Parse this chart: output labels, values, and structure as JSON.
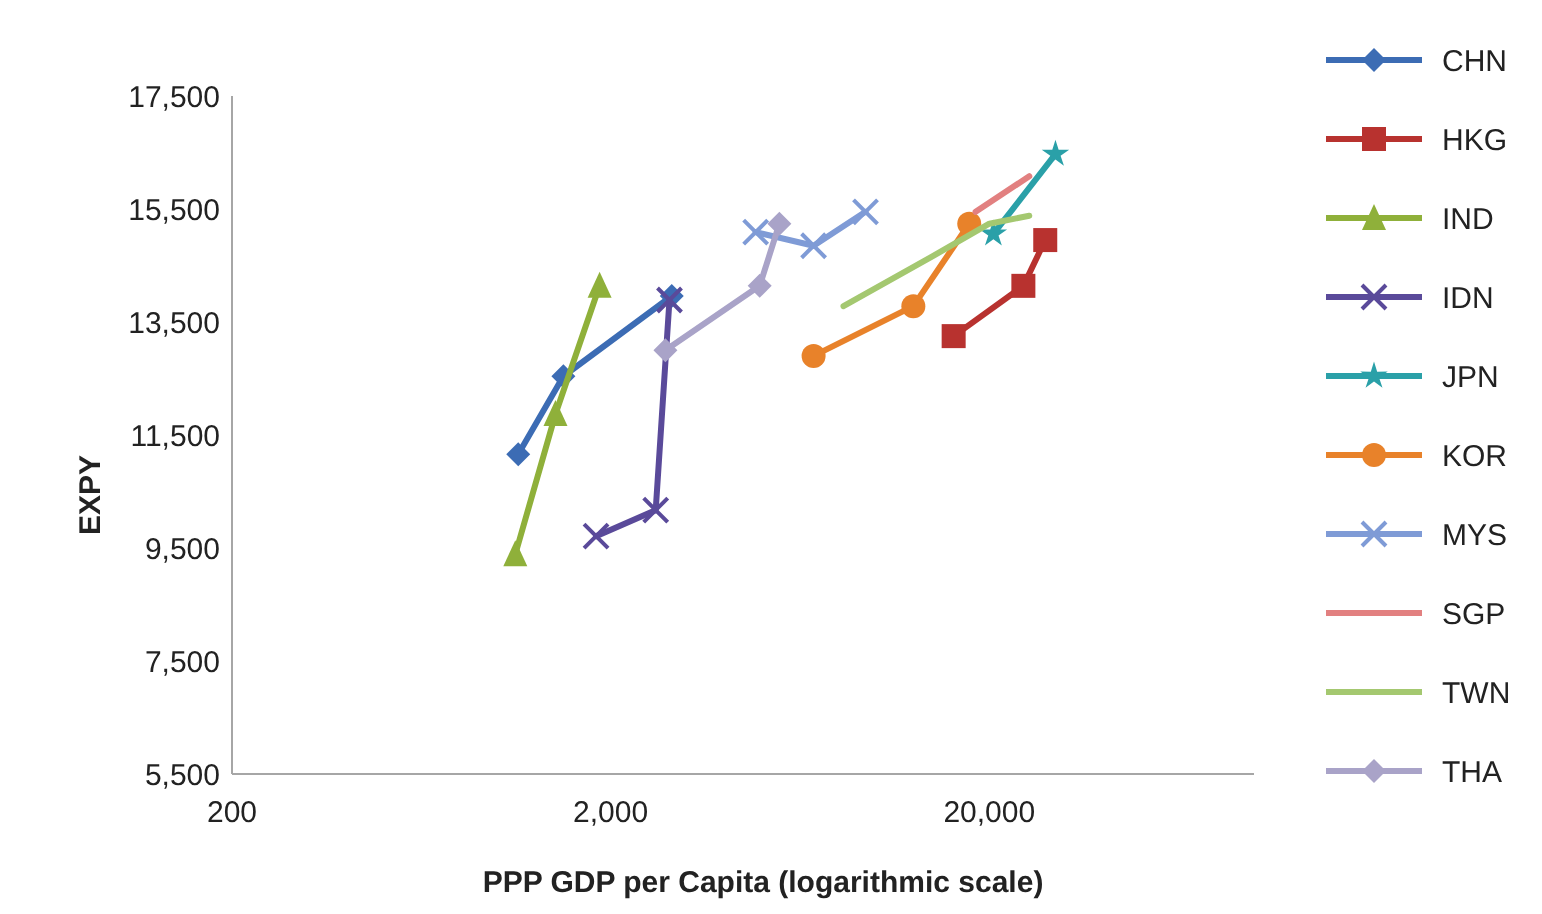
{
  "chart_data": {
    "type": "line",
    "xlabel": "PPP GDP per Capita (logarithmic scale)",
    "ylabel": "EXPY",
    "log": "x",
    "grid": false,
    "legend": "right",
    "xlim": [
      200,
      100000
    ],
    "xticks": [
      {
        "value": 200,
        "label": "200"
      },
      {
        "value": 2000,
        "label": "2,000"
      },
      {
        "value": 20000,
        "label": "20,000"
      }
    ],
    "ylim": [
      5500,
      17500
    ],
    "yticks": [
      {
        "value": 5500,
        "label": "5,500"
      },
      {
        "value": 7500,
        "label": "7,500"
      },
      {
        "value": 9500,
        "label": "9,500"
      },
      {
        "value": 11500,
        "label": "11,500"
      },
      {
        "value": 13500,
        "label": "13,500"
      },
      {
        "value": 15500,
        "label": "15,500"
      },
      {
        "value": 17500,
        "label": "17,500"
      }
    ],
    "series": [
      {
        "name": "CHN",
        "color": "#3c6cb4",
        "marker": "diamond",
        "x": [
          1140,
          1500,
          2900
        ],
        "values": [
          11160,
          12540,
          13960
        ]
      },
      {
        "name": "HKG",
        "color": "#b8322f",
        "marker": "square",
        "x": [
          16100,
          24600,
          28100
        ],
        "values": [
          13250,
          14140,
          14950
        ]
      },
      {
        "name": "IND",
        "color": "#8fb03a",
        "marker": "triangle",
        "x": [
          1120,
          1430,
          1870
        ],
        "values": [
          9390,
          11870,
          14140
        ]
      },
      {
        "name": "IDN",
        "color": "#5a4a9a",
        "marker": "cross",
        "x": [
          1830,
          2630,
          2860
        ],
        "values": [
          9710,
          10170,
          13890
        ]
      },
      {
        "name": "JPN",
        "color": "#2aa0a8",
        "marker": "star",
        "x": [
          20500,
          29900
        ],
        "values": [
          15060,
          16470
        ]
      },
      {
        "name": "KOR",
        "color": "#e8822a",
        "marker": "circle",
        "x": [
          6870,
          12600,
          17700
        ],
        "values": [
          12900,
          13780,
          15240
        ]
      },
      {
        "name": "MYS",
        "color": "#7f9bd6",
        "marker": "cross",
        "x": [
          4830,
          6870,
          9420
        ],
        "values": [
          15090,
          14850,
          15450
        ]
      },
      {
        "name": "SGP",
        "color": "#e28080",
        "marker": "none",
        "x": [
          18400,
          25500
        ],
        "values": [
          15450,
          16080
        ]
      },
      {
        "name": "TWN",
        "color": "#a4c870",
        "marker": "none",
        "x": [
          8240,
          14220,
          20000,
          25500
        ],
        "values": [
          13780,
          14670,
          15240,
          15380
        ]
      },
      {
        "name": "THA",
        "color": "#a9a3c8",
        "marker": "diamond",
        "x": [
          2790,
          4950,
          5580
        ],
        "values": [
          13000,
          14140,
          15240
        ]
      }
    ]
  }
}
